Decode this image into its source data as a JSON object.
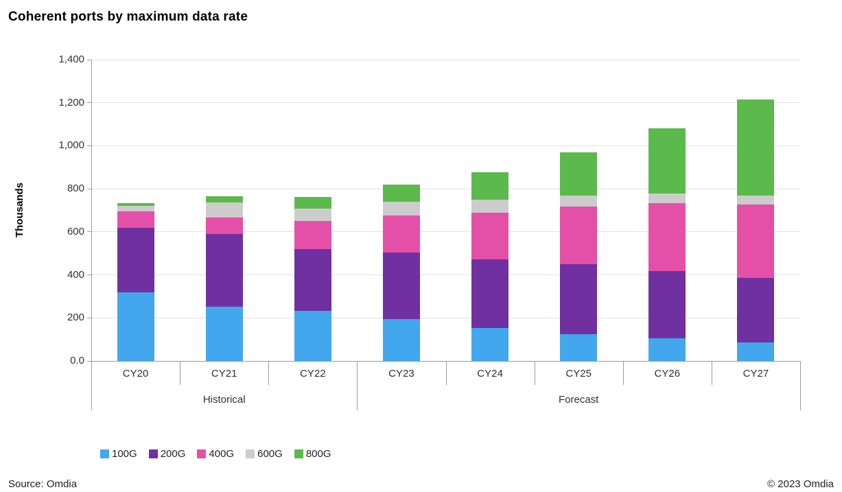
{
  "title": "Coherent ports by maximum data rate",
  "y_axis_title": "Thousands",
  "footer": {
    "source": "Source: Omdia",
    "copyright": "© 2023 Omdia"
  },
  "chart_data": {
    "type": "bar",
    "stacked": true,
    "title": "Coherent ports by maximum data rate",
    "ylabel": "Thousands",
    "xlabel": "",
    "ylim": [
      0,
      1400
    ],
    "y_tick_interval": 200,
    "y_tick_labels": [
      "1,400",
      "1,200",
      "1,000",
      "800",
      "600",
      "400",
      "200",
      "0.0"
    ],
    "grid": true,
    "legend_position": "bottom",
    "categories": [
      "CY20",
      "CY21",
      "CY22",
      "CY23",
      "CY24",
      "CY25",
      "CY26",
      "CY27"
    ],
    "category_groups": [
      {
        "label": "Historical",
        "span": 3
      },
      {
        "label": "Forecast",
        "span": 5
      }
    ],
    "series": [
      {
        "name": "100G",
        "color": "#42A7EC",
        "values": [
          320,
          253,
          232,
          195,
          152,
          123,
          104,
          87
        ]
      },
      {
        "name": "200G",
        "color": "#7030A0",
        "values": [
          300,
          337,
          289,
          310,
          321,
          327,
          314,
          298
        ]
      },
      {
        "name": "400G",
        "color": "#E450A8",
        "values": [
          75,
          77,
          130,
          171,
          216,
          267,
          317,
          341
        ]
      },
      {
        "name": "600G",
        "color": "#CCCCCC",
        "values": [
          25,
          70,
          58,
          63,
          60,
          51,
          44,
          42
        ]
      },
      {
        "name": "800G",
        "color": "#5CB94C",
        "values": [
          15,
          28,
          54,
          81,
          128,
          200,
          303,
          447
        ]
      }
    ]
  }
}
